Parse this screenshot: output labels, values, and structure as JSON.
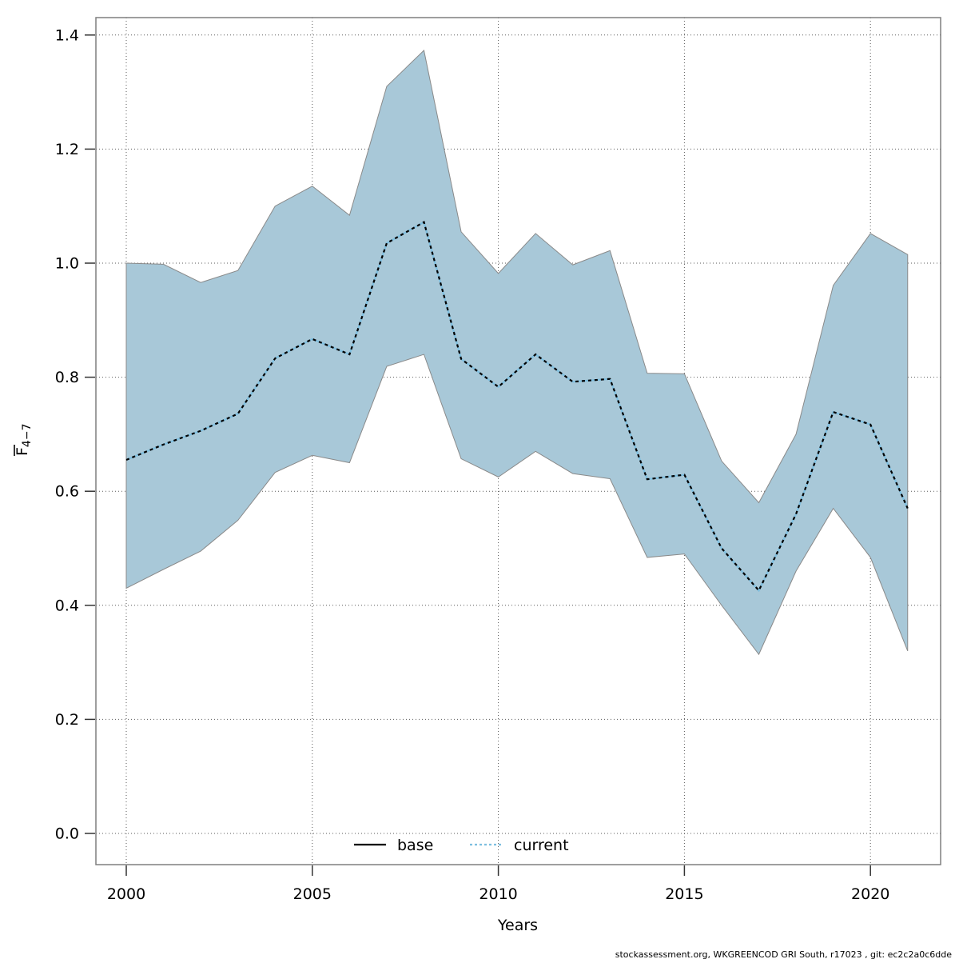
{
  "caption": "stockassessment.org, WKGREENCOD GRI South, r17023 , git: ec2c2a0c6dde",
  "colors": {
    "ribbon_fill": "#a8c8d8",
    "ribbon_edge": "#8a8a8a",
    "current_line_blue": "#7ebfe0",
    "current_line_dash": "#000000",
    "base_line": "#000000",
    "grid": "#5a5a5a",
    "axis_box": "#7f7f7f",
    "tick": "#333333"
  },
  "legend": {
    "items": [
      {
        "label": "base",
        "style": "solid",
        "color": "#000000"
      },
      {
        "label": "current",
        "style": "dotted",
        "color": "#7ebfe0"
      }
    ]
  },
  "chart_data": {
    "type": "line",
    "title": "",
    "xlabel": "Years",
    "ylabel_main": "F",
    "ylabel_sub": "4−7",
    "x_ticks": [
      2000,
      2005,
      2010,
      2015,
      2020
    ],
    "x_tick_labels": [
      "2000",
      "2005",
      "2010",
      "2015",
      "2020"
    ],
    "y_ticks": [
      0.0,
      0.2,
      0.4,
      0.6,
      0.8,
      1.0,
      1.2,
      1.4
    ],
    "y_tick_labels": [
      "0.0",
      "0.2",
      "0.4",
      "0.6",
      "0.8",
      "1.0",
      "1.2",
      "1.4"
    ],
    "xlim": [
      1999.2,
      2021.9
    ],
    "ylim": [
      -0.056,
      1.436
    ],
    "grid": true,
    "legend_position": "bottom-center",
    "x": [
      2000,
      2001,
      2002,
      2003,
      2004,
      2005,
      2006,
      2007,
      2008,
      2009,
      2010,
      2011,
      2012,
      2013,
      2014,
      2015,
      2016,
      2017,
      2018,
      2019,
      2020,
      2021
    ],
    "series": [
      {
        "name": "current",
        "values": [
          0.655,
          0.682,
          0.706,
          0.736,
          0.833,
          0.867,
          0.84,
          1.035,
          1.072,
          0.832,
          0.783,
          0.84,
          0.792,
          0.797,
          0.621,
          0.629,
          0.5,
          0.426,
          0.56,
          0.739,
          0.717,
          0.57
        ]
      }
    ],
    "band": {
      "name": "current confidence band",
      "low": [
        0.43,
        0.463,
        0.495,
        0.549,
        0.633,
        0.663,
        0.65,
        0.819,
        0.84,
        0.657,
        0.625,
        0.67,
        0.631,
        0.622,
        0.484,
        0.49,
        0.4,
        0.314,
        0.46,
        0.57,
        0.484,
        0.32
      ],
      "high": [
        1.0,
        0.998,
        0.966,
        0.987,
        1.1,
        1.135,
        1.084,
        1.31,
        1.373,
        1.055,
        0.982,
        1.052,
        0.997,
        1.022,
        0.807,
        0.806,
        0.653,
        0.58,
        0.7,
        0.961,
        1.052,
        1.015
      ]
    }
  }
}
